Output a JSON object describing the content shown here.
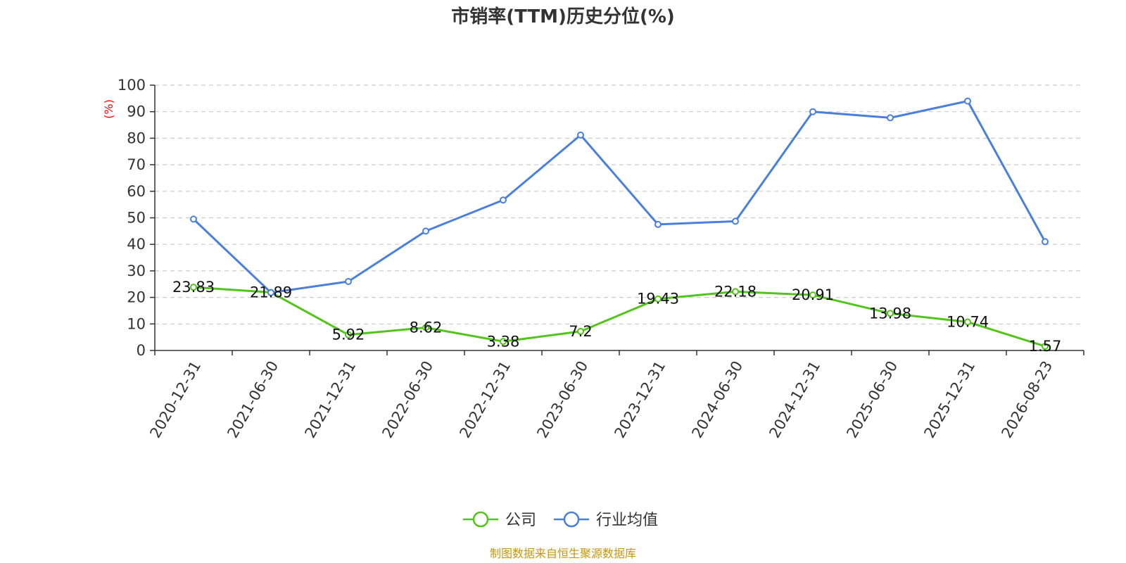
{
  "chart_data": {
    "type": "line",
    "title": "市销率(TTM)历史分位(%)",
    "ylabel": "(%)",
    "xlabel": "",
    "ylim": [
      0,
      100
    ],
    "yticks": [
      0,
      10,
      20,
      30,
      40,
      50,
      60,
      70,
      80,
      90,
      100
    ],
    "grid": "horizontal dashed",
    "legend_position": "bottom-center",
    "categories": [
      "2020-12-31",
      "2021-06-30",
      "2021-12-31",
      "2022-06-30",
      "2022-12-31",
      "2023-06-30",
      "2023-12-31",
      "2024-06-30",
      "2024-12-31",
      "2025-06-30",
      "2025-12-31",
      "2026-08-23"
    ],
    "series": [
      {
        "name": "公司",
        "color": "#52c41a",
        "values": [
          23.83,
          21.89,
          5.92,
          8.62,
          3.38,
          7.2,
          19.43,
          22.18,
          20.91,
          13.98,
          10.74,
          1.57
        ],
        "labels": [
          "23.83",
          "21.89",
          "5.92",
          "8.62",
          "3.38",
          "7.2",
          "19.43",
          "22.18",
          "20.91",
          "13.98",
          "10.74",
          "1.57"
        ]
      },
      {
        "name": "行业均值",
        "color": "#4a7fdb",
        "values": [
          49.5,
          21.8,
          26,
          45,
          56.7,
          81.2,
          47.5,
          48.7,
          90,
          87.7,
          94,
          41
        ]
      }
    ],
    "source": "制图数据来自恒生聚源数据库"
  },
  "colors": {
    "axis": "#333333",
    "grid": "#cccccc",
    "ylabel": "#ff0000",
    "source": "#c8960a"
  }
}
